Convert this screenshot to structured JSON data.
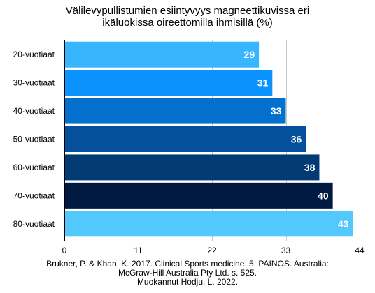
{
  "chart_data": {
    "type": "bar",
    "orientation": "horizontal",
    "title_lines": [
      "Välilevypullistumien esiintyvyys magneettikuvissa eri",
      "ikäluokissa oireettomilla ihmisillä (%)"
    ],
    "categories": [
      "20-vuotiaat",
      "30-vuotiaat",
      "40-vuotiaat",
      "50-vuotiaat",
      "60-vuotiaat",
      "70-vuotiaat",
      "80-vuotiaat"
    ],
    "values": [
      29,
      31,
      33,
      36,
      38,
      40,
      43
    ],
    "bar_colors": [
      "#38b6fd",
      "#0a92ff",
      "#0370cd",
      "#04509c",
      "#023a74",
      "#011a42",
      "#53c8fd"
    ],
    "value_label_color": "#ffffff",
    "xlim": [
      0,
      44
    ],
    "xticks": [
      0,
      11,
      22,
      33,
      44
    ],
    "xlabel": "",
    "ylabel": "",
    "grid": "vertical-lines",
    "legend": "none",
    "source_lines": [
      "Brukner, P. & Khan, K. 2017. Clinical Sports medicine. 5. PAINOS. Australia:",
      "McGraw-Hill Australia Pty Ltd. s. 525.",
      "Muokannut Hodju, L. 2022."
    ]
  }
}
